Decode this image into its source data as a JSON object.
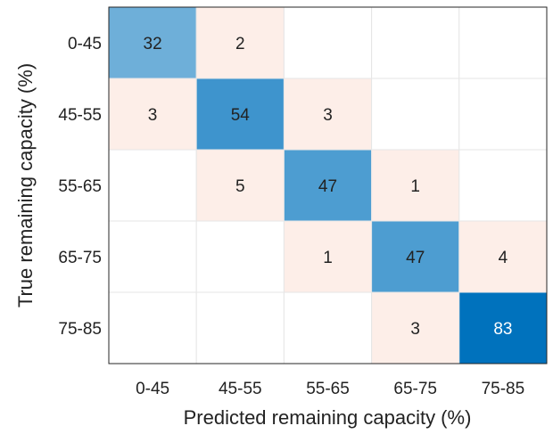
{
  "chart_data": {
    "type": "heatmap",
    "title": "",
    "xlabel": "Predicted remaining capacity (%)",
    "ylabel": "True remaining capacity (%)",
    "x_categories": [
      "0-45",
      "45-55",
      "55-65",
      "65-75",
      "75-85"
    ],
    "y_categories": [
      "0-45",
      "45-55",
      "55-65",
      "65-75",
      "75-85"
    ],
    "values": [
      [
        32,
        2,
        null,
        null,
        null
      ],
      [
        3,
        54,
        3,
        null,
        null
      ],
      [
        null,
        5,
        47,
        1,
        null
      ],
      [
        null,
        null,
        1,
        47,
        4
      ],
      [
        null,
        null,
        null,
        3,
        83
      ]
    ],
    "colors": {
      "diagonal_max": "#0072bd",
      "diagonal_min": "#ffffff",
      "off_diagonal": "#fdeee8",
      "empty": "#ffffff",
      "grid_line": "#e6e6e6",
      "axis_line": "#262626",
      "text_dark": "#222222",
      "text_light": "#ffffff"
    }
  }
}
